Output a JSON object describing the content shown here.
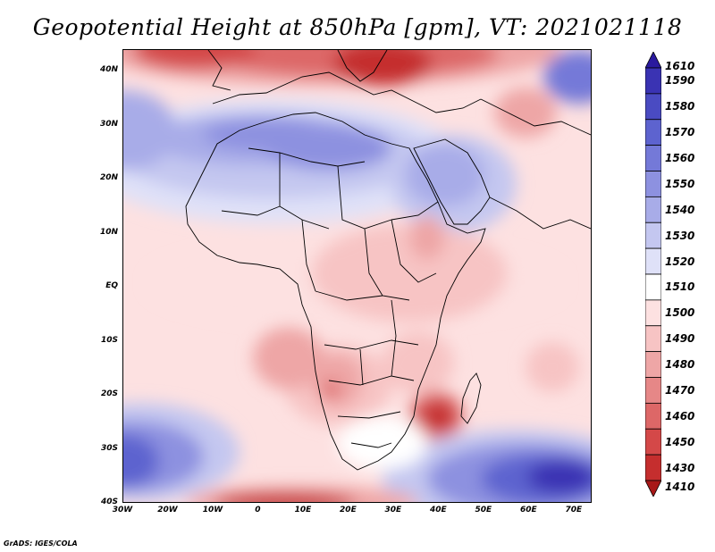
{
  "title": "Geopotential Height at 850hPa [gpm], VT: 2021021118",
  "credit": "GrADS: IGES/COLA",
  "axes": {
    "lat_ticks": [
      {
        "value": 40,
        "label": "40N"
      },
      {
        "value": 30,
        "label": "30N"
      },
      {
        "value": 20,
        "label": "20N"
      },
      {
        "value": 10,
        "label": "10N"
      },
      {
        "value": 0,
        "label": "EQ"
      },
      {
        "value": -10,
        "label": "10S"
      },
      {
        "value": -20,
        "label": "20S"
      },
      {
        "value": -30,
        "label": "30S"
      },
      {
        "value": -40,
        "label": "40S"
      }
    ],
    "lon_ticks": [
      {
        "value": -30,
        "label": "30W"
      },
      {
        "value": -20,
        "label": "20W"
      },
      {
        "value": -10,
        "label": "10W"
      },
      {
        "value": 0,
        "label": "0"
      },
      {
        "value": 10,
        "label": "10E"
      },
      {
        "value": 20,
        "label": "20E"
      },
      {
        "value": 30,
        "label": "30E"
      },
      {
        "value": 40,
        "label": "40E"
      },
      {
        "value": 50,
        "label": "50E"
      },
      {
        "value": 60,
        "label": "60E"
      },
      {
        "value": 70,
        "label": "70E"
      }
    ],
    "lon_range": [
      -30,
      74
    ],
    "lat_range": [
      -40,
      44
    ]
  },
  "colorbar": {
    "levels": [
      {
        "label": "1610",
        "color": "#2a1a9e"
      },
      {
        "label": "1590",
        "color": "#3a33b3"
      },
      {
        "label": "1580",
        "color": "#4a4bc2"
      },
      {
        "label": "1570",
        "color": "#5d63cf"
      },
      {
        "label": "1560",
        "color": "#7479d8"
      },
      {
        "label": "1550",
        "color": "#8d91e0"
      },
      {
        "label": "1540",
        "color": "#a8ace8"
      },
      {
        "label": "1530",
        "color": "#c4c7f0"
      },
      {
        "label": "1520",
        "color": "#dfe1f8"
      },
      {
        "label": "1510",
        "color": "#ffffff"
      },
      {
        "label": "1500",
        "color": "#fde1e1"
      },
      {
        "label": "1490",
        "color": "#f7c4c4"
      },
      {
        "label": "1480",
        "color": "#eea6a6"
      },
      {
        "label": "1470",
        "color": "#e68787"
      },
      {
        "label": "1460",
        "color": "#dd6767"
      },
      {
        "label": "1450",
        "color": "#d44848"
      },
      {
        "label": "1430",
        "color": "#c52e2e"
      },
      {
        "label": "1410",
        "color": "#a81818"
      }
    ]
  },
  "map_colors": {
    "ocean_base": "#fde1e1",
    "coastline": "#000000"
  }
}
